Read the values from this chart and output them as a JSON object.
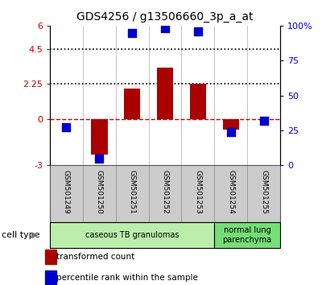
{
  "title": "GDS4256 / g13506660_3p_a_at",
  "samples": [
    "GSM501249",
    "GSM501250",
    "GSM501251",
    "GSM501252",
    "GSM501253",
    "GSM501254",
    "GSM501255"
  ],
  "transformed_counts": [
    -0.05,
    -2.3,
    1.95,
    3.3,
    2.25,
    -0.7,
    -0.05
  ],
  "percentile_ranks": [
    27,
    5,
    95,
    98,
    96,
    24,
    32
  ],
  "ylim_left": [
    -3,
    6
  ],
  "ylim_right": [
    0,
    100
  ],
  "yticks_left": [
    -3,
    0,
    2.25,
    4.5,
    6
  ],
  "ytick_labels_left": [
    "-3",
    "0",
    "2.25",
    "4.5",
    "6"
  ],
  "yticks_right": [
    0,
    25,
    50,
    75,
    100
  ],
  "ytick_labels_right": [
    "0",
    "25",
    "50",
    "75",
    "100%"
  ],
  "hlines": [
    0,
    2.25,
    4.5
  ],
  "hline_styles": [
    "dashed",
    "dotted",
    "dotted"
  ],
  "hline_colors": [
    "#cc0000",
    "#000000",
    "#000000"
  ],
  "bar_color": "#aa0000",
  "dot_color": "#0000cc",
  "groups": [
    {
      "label": "caseous TB granulomas",
      "indices": [
        0,
        1,
        2,
        3,
        4
      ],
      "color": "#bbeeaa"
    },
    {
      "label": "normal lung\nparenchyma",
      "indices": [
        5,
        6
      ],
      "color": "#77dd77"
    }
  ],
  "cell_type_label": "cell type",
  "legend_entries": [
    {
      "color": "#aa0000",
      "label": "transformed count"
    },
    {
      "color": "#0000cc",
      "label": "percentile rank within the sample"
    }
  ],
  "label_bg": "#cccccc",
  "bar_width": 0.5,
  "dot_size": 55
}
